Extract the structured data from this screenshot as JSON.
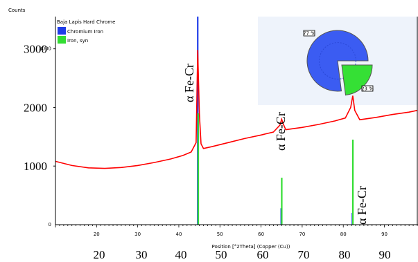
{
  "chart_data": {
    "type": "line",
    "ylabel_top": "Counts",
    "xlabel": "Position [°2Theta] (Copper (Cu))",
    "xlim": [
      10,
      98
    ],
    "ylim": [
      0,
      3550
    ],
    "x_ticks": [
      20,
      30,
      40,
      50,
      60,
      70,
      80,
      90
    ],
    "y_ticks_small": [
      1000,
      2000,
      3000
    ],
    "y_ticks_overlay": [
      1000,
      2000,
      3000
    ],
    "x_ticks_overlay": [
      20,
      30,
      40,
      50,
      60,
      70,
      80,
      90
    ],
    "legend": {
      "title": "Baja Lapis Hard Chrome",
      "entries": [
        {
          "name": "Chromium Iron",
          "color": "#1f3de8"
        },
        {
          "name": "Iron, syn",
          "color": "#33dd33"
        }
      ]
    },
    "series": [
      {
        "name": "pattern",
        "color": "#ff0000",
        "x": [
          10,
          14,
          18,
          22,
          26,
          30,
          34,
          38,
          41,
          43,
          44.2,
          44.6,
          45,
          45.4,
          46,
          48,
          52,
          56,
          60,
          63,
          64.6,
          65,
          65.4,
          66,
          70,
          74,
          78,
          80.5,
          81.8,
          82.3,
          82.8,
          84,
          88,
          92,
          96,
          98
        ],
        "y": [
          1080,
          1010,
          970,
          960,
          975,
          1010,
          1060,
          1120,
          1180,
          1240,
          1400,
          2980,
          1900,
          1380,
          1300,
          1330,
          1400,
          1470,
          1530,
          1580,
          1700,
          1800,
          1720,
          1620,
          1660,
          1710,
          1770,
          1820,
          2000,
          2200,
          1950,
          1790,
          1830,
          1880,
          1920,
          1950
        ]
      }
    ],
    "reference_lines": [
      {
        "name": "Chromium Iron",
        "x": 44.6,
        "height": 3550,
        "color": "#1f3de8"
      },
      {
        "name": "Chromium Iron",
        "x": 64.9,
        "height": 280,
        "color": "#1f3de8"
      },
      {
        "name": "Chromium Iron",
        "x": 82.2,
        "height": 200,
        "color": "#1f3de8"
      },
      {
        "name": "Iron, syn",
        "x": 44.6,
        "height": 1900,
        "color": "#33dd33"
      },
      {
        "name": "Iron, syn",
        "x": 64.9,
        "height": 800,
        "color": "#33dd33"
      },
      {
        "name": "Iron, syn",
        "x": 82.2,
        "height": 1450,
        "color": "#33dd33"
      }
    ],
    "peak_annotations": [
      {
        "label": "α Fe-Cr",
        "x": 44.6
      },
      {
        "label": "α Fe-Cr",
        "x": 64.9
      },
      {
        "label": "α Fe-Cr",
        "x": 82.2
      }
    ],
    "pie": {
      "slices": [
        {
          "name": "Chromium Iron",
          "value": 77,
          "label": "77 %",
          "color": "#3b5cf2"
        },
        {
          "name": "Iron, syn",
          "value": 23,
          "label": "23 %",
          "color": "#35e035"
        }
      ]
    },
    "grid": false
  }
}
